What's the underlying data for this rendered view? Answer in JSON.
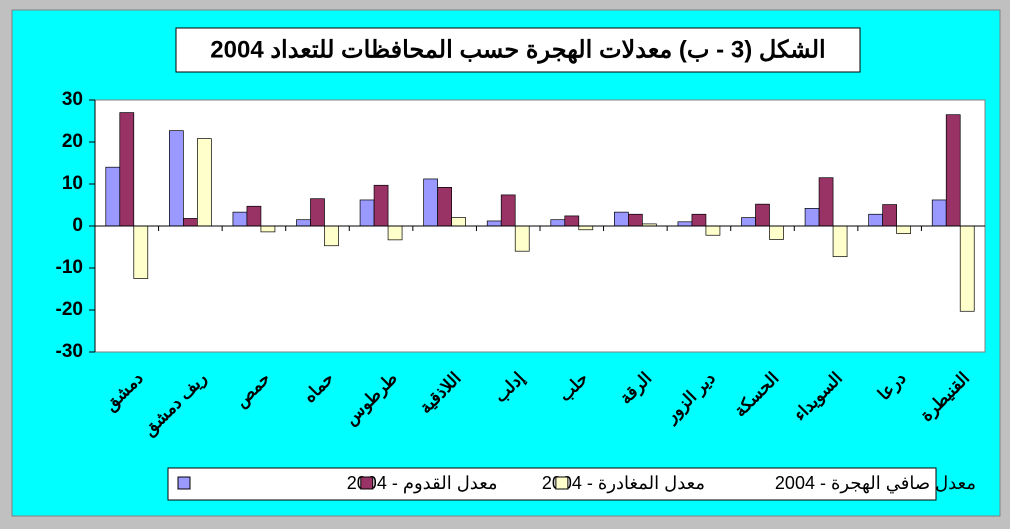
{
  "chart_data": {
    "type": "bar",
    "title": "الشكل (3 - ب) معدلات الهجرة حسب المحافظات للتعداد 2004",
    "categories": [
      "دمشق",
      "ريف دمشق",
      "حمص",
      "حماه",
      "طرطوس",
      "اللاذقية",
      "إدلب",
      "حلب",
      "الرقة",
      "دير الزور",
      "الحسكة",
      "السويداء",
      "درعا",
      "القنيطرة"
    ],
    "series": [
      {
        "name": "معدل القدوم - 2004",
        "color": "#9999ff",
        "values": [
          14,
          22.7,
          3.3,
          1.5,
          6.2,
          11.2,
          1.2,
          1.5,
          3.3,
          1,
          2,
          4.2,
          2.8,
          6.2
        ]
      },
      {
        "name": "معدل المغادرة - 2004",
        "color": "#993366",
        "values": [
          27,
          1.8,
          4.7,
          6.5,
          9.7,
          9.2,
          7.4,
          2.4,
          2.8,
          2.8,
          5.2,
          11.5,
          5.1,
          26.5
        ]
      },
      {
        "name": "معدل صافي الهجرة - 2004",
        "color": "#ffffcc",
        "values": [
          -12.5,
          20.8,
          -1.4,
          -4.7,
          -3.3,
          2,
          -6,
          -0.9,
          0.5,
          -2.2,
          -3.2,
          -7.3,
          -1.8,
          -20.3
        ]
      }
    ],
    "ylim": [
      -30,
      30
    ],
    "yticks": [
      -30,
      -20,
      -10,
      0,
      10,
      20,
      30
    ],
    "grid": false
  }
}
